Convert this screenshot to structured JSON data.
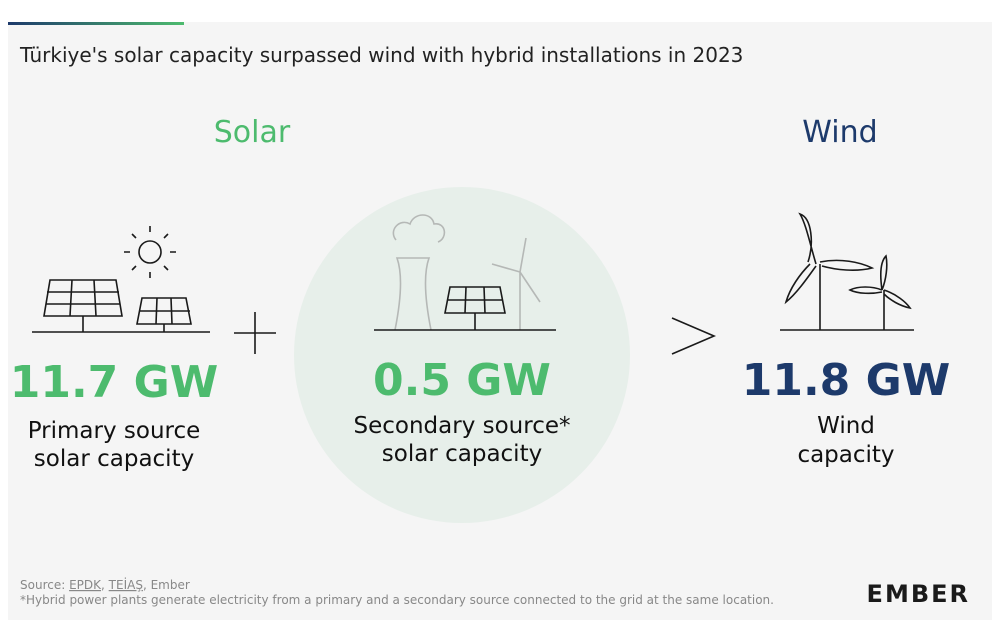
{
  "header": {
    "title": "Türkiye's solar capacity surpassed wind with hybrid installations in 2023"
  },
  "solar": {
    "heading": "Solar",
    "primary": {
      "value": "11.7 GW",
      "lines": [
        "Primary source",
        "solar capacity"
      ]
    },
    "secondary": {
      "value": "0.5 GW",
      "lines": [
        "Secondary source*",
        "solar capacity"
      ]
    }
  },
  "wind": {
    "heading": "Wind",
    "value": "11.8 GW",
    "lines": [
      "Wind",
      "capacity"
    ]
  },
  "footer": {
    "source": [
      "Source: ",
      "EPDK",
      ", ",
      "TEİAŞ",
      ", Ember"
    ],
    "note": "*Hybrid power plants generate electricity from a primary and a secondary source connected to the grid at the same location.",
    "logo": "EMBER"
  }
}
